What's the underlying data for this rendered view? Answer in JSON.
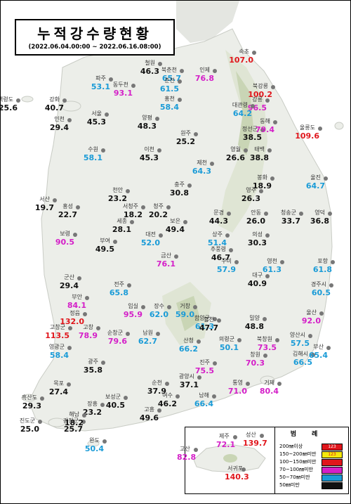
{
  "title": "누적강수량현황",
  "period": "(2022.06.04.00:00 ~ 2022.06.16.08:00)",
  "colors": {
    "black": "#111111",
    "cyan": "#1a9bd7",
    "magenta": "#d41fc8",
    "red": "#e0161c"
  },
  "stations": [
    {
      "name": "철원",
      "value": "46.3",
      "cls": "black"
    },
    {
      "name": "북춘천",
      "value": "65.7",
      "cls": "cyan"
    },
    {
      "name": "춘천",
      "value": "61.5",
      "cls": "cyan"
    },
    {
      "name": "인제",
      "value": "76.8",
      "cls": "magenta"
    },
    {
      "name": "속초",
      "value": "107.0",
      "cls": "red"
    },
    {
      "name": "파주",
      "value": "53.1",
      "cls": "cyan"
    },
    {
      "name": "동두천",
      "value": "93.1",
      "cls": "magenta"
    },
    {
      "name": "북강릉",
      "value": "100.2",
      "cls": "red"
    },
    {
      "name": "백령도",
      "value": "25.6",
      "cls": "black"
    },
    {
      "name": "강화",
      "value": "40.7",
      "cls": "black"
    },
    {
      "name": "홍천",
      "value": "58.4",
      "cls": "cyan"
    },
    {
      "name": "강릉",
      "value": "96.5",
      "cls": "magenta"
    },
    {
      "name": "대관령",
      "value": "64.2",
      "cls": "cyan"
    },
    {
      "name": "서울",
      "value": "45.3",
      "cls": "black"
    },
    {
      "name": "인천",
      "value": "29.4",
      "cls": "black"
    },
    {
      "name": "양평",
      "value": "48.3",
      "cls": "black"
    },
    {
      "name": "원주",
      "value": "25.2",
      "cls": "black"
    },
    {
      "name": "정선군",
      "value": "38.5",
      "cls": "black"
    },
    {
      "name": "동해",
      "value": "79.4",
      "cls": "magenta"
    },
    {
      "name": "울릉도",
      "value": "109.6",
      "cls": "red"
    },
    {
      "name": "수원",
      "value": "58.1",
      "cls": "cyan"
    },
    {
      "name": "이천",
      "value": "45.3",
      "cls": "black"
    },
    {
      "name": "영월",
      "value": "26.6",
      "cls": "black"
    },
    {
      "name": "태백",
      "value": "38.8",
      "cls": "black"
    },
    {
      "name": "제천",
      "value": "64.3",
      "cls": "cyan"
    },
    {
      "name": "봉화",
      "value": "18.9",
      "cls": "black"
    },
    {
      "name": "울진",
      "value": "64.7",
      "cls": "cyan"
    },
    {
      "name": "충주",
      "value": "30.8",
      "cls": "black"
    },
    {
      "name": "천안",
      "value": "23.2",
      "cls": "black"
    },
    {
      "name": "영주",
      "value": "26.3",
      "cls": "black"
    },
    {
      "name": "서산",
      "value": "19.7",
      "cls": "black"
    },
    {
      "name": "홍성",
      "value": "22.7",
      "cls": "black"
    },
    {
      "name": "서청주",
      "value": "18.2",
      "cls": "black"
    },
    {
      "name": "청주",
      "value": "20.2",
      "cls": "black"
    },
    {
      "name": "문경",
      "value": "44.3",
      "cls": "black"
    },
    {
      "name": "안동",
      "value": "26.0",
      "cls": "black"
    },
    {
      "name": "청송군",
      "value": "33.7",
      "cls": "black"
    },
    {
      "name": "영덕",
      "value": "36.8",
      "cls": "black"
    },
    {
      "name": "세종",
      "value": "28.1",
      "cls": "black"
    },
    {
      "name": "보은",
      "value": "49.4",
      "cls": "black"
    },
    {
      "name": "보령",
      "value": "90.5",
      "cls": "magenta"
    },
    {
      "name": "대전",
      "value": "52.0",
      "cls": "cyan"
    },
    {
      "name": "상주",
      "value": "51.4",
      "cls": "cyan"
    },
    {
      "name": "의성",
      "value": "30.3",
      "cls": "black"
    },
    {
      "name": "부여",
      "value": "49.5",
      "cls": "black"
    },
    {
      "name": "추풍령",
      "value": "46.7",
      "cls": "black"
    },
    {
      "name": "금산",
      "value": "76.1",
      "cls": "magenta"
    },
    {
      "name": "구미",
      "value": "57.9",
      "cls": "cyan"
    },
    {
      "name": "영천",
      "value": "61.3",
      "cls": "cyan"
    },
    {
      "name": "포항",
      "value": "61.8",
      "cls": "cyan"
    },
    {
      "name": "군산",
      "value": "29.4",
      "cls": "black"
    },
    {
      "name": "대구",
      "value": "40.9",
      "cls": "black"
    },
    {
      "name": "전주",
      "value": "65.8",
      "cls": "cyan"
    },
    {
      "name": "경주시",
      "value": "60.5",
      "cls": "cyan"
    },
    {
      "name": "부안",
      "value": "84.1",
      "cls": "magenta"
    },
    {
      "name": "임실",
      "value": "95.9",
      "cls": "magenta"
    },
    {
      "name": "장수",
      "value": "62.0",
      "cls": "cyan"
    },
    {
      "name": "거창",
      "value": "59.0",
      "cls": "cyan"
    },
    {
      "name": "정읍",
      "value": "132.0",
      "cls": "red"
    },
    {
      "name": "함양군",
      "value": "61.3",
      "cls": "cyan"
    },
    {
      "name": "합천",
      "value": "47.7",
      "cls": "black"
    },
    {
      "name": "밀양",
      "value": "48.8",
      "cls": "black"
    },
    {
      "name": "울산",
      "value": "92.0",
      "cls": "magenta"
    },
    {
      "name": "고창군",
      "value": "113.5",
      "cls": "red"
    },
    {
      "name": "고창",
      "value": "78.9",
      "cls": "magenta"
    },
    {
      "name": "순창군",
      "value": "79.6",
      "cls": "magenta"
    },
    {
      "name": "남원",
      "value": "62.7",
      "cls": "cyan"
    },
    {
      "name": "산청",
      "value": "66.2",
      "cls": "cyan"
    },
    {
      "name": "의령군",
      "value": "50.1",
      "cls": "cyan"
    },
    {
      "name": "북창원",
      "value": "73.5",
      "cls": "magenta"
    },
    {
      "name": "양산시",
      "value": "57.5",
      "cls": "cyan"
    },
    {
      "name": "영광군",
      "value": "58.4",
      "cls": "cyan"
    },
    {
      "name": "창원",
      "value": "70.3",
      "cls": "magenta"
    },
    {
      "name": "김해시",
      "value": "66.5",
      "cls": "cyan"
    },
    {
      "name": "부산",
      "value": "65.4",
      "cls": "cyan"
    },
    {
      "name": "진주",
      "value": "75.5",
      "cls": "magenta"
    },
    {
      "name": "광주",
      "value": "35.8",
      "cls": "black"
    },
    {
      "name": "광양시",
      "value": "37.1",
      "cls": "black"
    },
    {
      "name": "순천",
      "value": "37.9",
      "cls": "black"
    },
    {
      "name": "통영",
      "value": "71.0",
      "cls": "magenta"
    },
    {
      "name": "거제",
      "value": "80.4",
      "cls": "magenta"
    },
    {
      "name": "목포",
      "value": "27.4",
      "cls": "black"
    },
    {
      "name": "보성군",
      "value": "40.5",
      "cls": "black"
    },
    {
      "name": "장흥",
      "value": "23.2",
      "cls": "black"
    },
    {
      "name": "여수",
      "value": "46.2",
      "cls": "black"
    },
    {
      "name": "남해",
      "value": "66.4",
      "cls": "cyan"
    },
    {
      "name": "흑산도",
      "value": "29.3",
      "cls": "black"
    },
    {
      "name": "강진군",
      "value": "25.7",
      "cls": "black"
    },
    {
      "name": "진도군",
      "value": "25.0",
      "cls": "black"
    },
    {
      "name": "해남",
      "value": "18.2",
      "cls": "black"
    },
    {
      "name": "고흥",
      "value": "49.6",
      "cls": "black"
    },
    {
      "name": "완도",
      "value": "50.4",
      "cls": "cyan"
    }
  ],
  "jeju": [
    {
      "name": "제주",
      "value": "72.1",
      "cls": "magenta"
    },
    {
      "name": "성산",
      "value": "139.7",
      "cls": "red"
    },
    {
      "name": "고산",
      "value": "82.8",
      "cls": "magenta"
    },
    {
      "name": "서귀포",
      "value": "140.3",
      "cls": "red"
    }
  ],
  "legend": {
    "title": "범례",
    "rows": [
      {
        "label": "200㎜이상",
        "swatch": "#e0161c",
        "sample": "123"
      },
      {
        "label": "150~200㎜미만",
        "swatch": "#f5e80d",
        "sample": "123"
      },
      {
        "label": "100~150㎜미만",
        "swatch": "#e0161c",
        "sample": ""
      },
      {
        "label": "70~100㎜미만",
        "swatch": "#d41fc8",
        "sample": ""
      },
      {
        "label": "50~70㎜미만",
        "swatch": "#1a9bd7",
        "sample": ""
      },
      {
        "label": "50㎜미만",
        "swatch": "#111111",
        "sample": ""
      }
    ]
  }
}
